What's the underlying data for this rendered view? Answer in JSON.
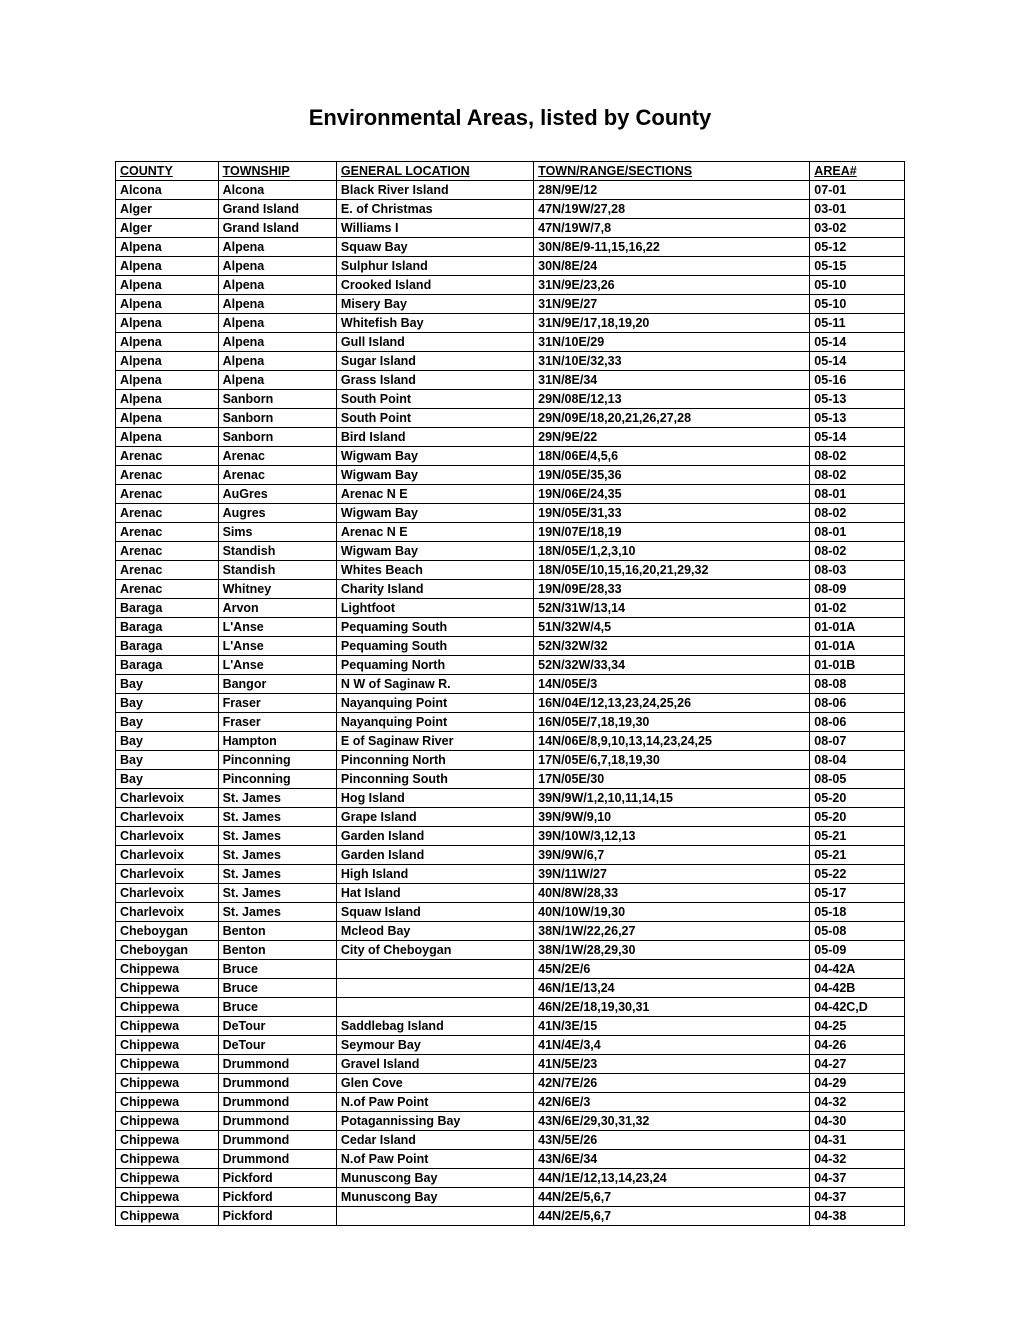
{
  "title": "Environmental Areas, listed by County",
  "columns": [
    "COUNTY",
    "TOWNSHIP",
    "GENERAL LOCATION",
    "TOWN/RANGE/SECTIONS",
    "AREA#"
  ],
  "rows": [
    [
      "Alcona",
      "Alcona",
      "Black River Island",
      "28N/9E/12",
      "07-01"
    ],
    [
      "Alger",
      "Grand Island",
      "E. of Christmas",
      "47N/19W/27,28",
      "03-01"
    ],
    [
      "Alger",
      "Grand Island",
      "Williams I",
      "47N/19W/7,8",
      "03-02"
    ],
    [
      "Alpena",
      "Alpena",
      "Squaw Bay",
      "30N/8E/9-11,15,16,22",
      "05-12"
    ],
    [
      "Alpena",
      "Alpena",
      "Sulphur Island",
      "30N/8E/24",
      "05-15"
    ],
    [
      "Alpena",
      "Alpena",
      "Crooked Island",
      "31N/9E/23,26",
      "05-10"
    ],
    [
      "Alpena",
      "Alpena",
      "Misery Bay",
      "31N/9E/27",
      "05-10"
    ],
    [
      "Alpena",
      "Alpena",
      "Whitefish Bay",
      "31N/9E/17,18,19,20",
      "05-11"
    ],
    [
      "Alpena",
      "Alpena",
      "Gull Island",
      "31N/10E/29",
      "05-14"
    ],
    [
      "Alpena",
      "Alpena",
      "Sugar Island",
      "31N/10E/32,33",
      "05-14"
    ],
    [
      "Alpena",
      "Alpena",
      "Grass Island",
      "31N/8E/34",
      "05-16"
    ],
    [
      "Alpena",
      "Sanborn",
      "South Point",
      "29N/08E/12,13",
      "05-13"
    ],
    [
      "Alpena",
      "Sanborn",
      "South Point",
      "29N/09E/18,20,21,26,27,28",
      "05-13"
    ],
    [
      "Alpena",
      "Sanborn",
      "Bird Island",
      "29N/9E/22",
      "05-14"
    ],
    [
      "Arenac",
      "Arenac",
      "Wigwam Bay",
      "18N/06E/4,5,6",
      "08-02"
    ],
    [
      "Arenac",
      "Arenac",
      "Wigwam Bay",
      "19N/05E/35,36",
      "08-02"
    ],
    [
      "Arenac",
      "AuGres",
      "Arenac N E",
      "19N/06E/24,35",
      "08-01"
    ],
    [
      "Arenac",
      "Augres",
      "Wigwam Bay",
      "19N/05E/31,33",
      "08-02"
    ],
    [
      "Arenac",
      "Sims",
      "Arenac N E",
      "19N/07E/18,19",
      "08-01"
    ],
    [
      "Arenac",
      "Standish",
      "Wigwam Bay",
      "18N/05E/1,2,3,10",
      "08-02"
    ],
    [
      "Arenac",
      "Standish",
      "Whites Beach",
      "18N/05E/10,15,16,20,21,29,32",
      "08-03"
    ],
    [
      "Arenac",
      "Whitney",
      "Charity Island",
      "19N/09E/28,33",
      "08-09"
    ],
    [
      "Baraga",
      "Arvon",
      "Lightfoot",
      "52N/31W/13,14",
      "01-02"
    ],
    [
      "Baraga",
      "L'Anse",
      "Pequaming South",
      "51N/32W/4,5",
      "01-01A"
    ],
    [
      "Baraga",
      "L'Anse",
      "Pequaming South",
      "52N/32W/32",
      "01-01A"
    ],
    [
      "Baraga",
      "L'Anse",
      "Pequaming North",
      "52N/32W/33,34",
      "01-01B"
    ],
    [
      "Bay",
      "Bangor",
      "N W  of Saginaw R.",
      "14N/05E/3",
      "08-08"
    ],
    [
      "Bay",
      "Fraser",
      "Nayanquing Point",
      "16N/04E/12,13,23,24,25,26",
      "08-06"
    ],
    [
      "Bay",
      "Fraser",
      "Nayanquing Point",
      "16N/05E/7,18,19,30",
      "08-06"
    ],
    [
      "Bay",
      "Hampton",
      "E of Saginaw River",
      "14N/06E/8,9,10,13,14,23,24,25",
      "08-07"
    ],
    [
      "Bay",
      "Pinconning",
      "Pinconning North",
      "17N/05E/6,7,18,19,30",
      "08-04"
    ],
    [
      "Bay",
      "Pinconning",
      "Pinconning South",
      "17N/05E/30",
      "08-05"
    ],
    [
      "Charlevoix",
      "St. James",
      "Hog Island",
      "39N/9W/1,2,10,11,14,15",
      "05-20"
    ],
    [
      "Charlevoix",
      "St. James",
      "Grape Island",
      "39N/9W/9,10",
      "05-20"
    ],
    [
      "Charlevoix",
      "St. James",
      "Garden Island",
      "39N/10W/3,12,13",
      "05-21"
    ],
    [
      "Charlevoix",
      "St. James",
      "Garden Island",
      "39N/9W/6,7",
      "05-21"
    ],
    [
      "Charlevoix",
      "St. James",
      "High Island",
      "39N/11W/27",
      "05-22"
    ],
    [
      "Charlevoix",
      "St. James",
      "Hat Island",
      "40N/8W/28,33",
      "05-17"
    ],
    [
      "Charlevoix",
      "St. James",
      "Squaw Island",
      "40N/10W/19,30",
      "05-18"
    ],
    [
      "Cheboygan",
      "Benton",
      "Mcleod Bay",
      "38N/1W/22,26,27",
      "05-08"
    ],
    [
      "Cheboygan",
      "Benton",
      "City of Cheboygan",
      "38N/1W/28,29,30",
      "05-09"
    ],
    [
      "Chippewa",
      "Bruce",
      "",
      "45N/2E/6",
      "04-42A"
    ],
    [
      "Chippewa",
      "Bruce",
      "",
      "46N/1E/13,24",
      "04-42B"
    ],
    [
      "Chippewa",
      "Bruce",
      "",
      "46N/2E/18,19,30,31",
      "04-42C,D"
    ],
    [
      "Chippewa",
      "DeTour",
      "Saddlebag Island",
      "41N/3E/15",
      "04-25"
    ],
    [
      "Chippewa",
      "DeTour",
      "Seymour Bay",
      "41N/4E/3,4",
      "04-26"
    ],
    [
      "Chippewa",
      "Drummond",
      "Gravel Island",
      "41N/5E/23",
      "04-27"
    ],
    [
      "Chippewa",
      "Drummond",
      "Glen Cove",
      "42N/7E/26",
      "04-29"
    ],
    [
      "Chippewa",
      "Drummond",
      "N.of Paw Point",
      "42N/6E/3",
      "04-32"
    ],
    [
      "Chippewa",
      "Drummond",
      "Potagannissing Bay",
      "43N/6E/29,30,31,32",
      "04-30"
    ],
    [
      "Chippewa",
      "Drummond",
      "Cedar Island",
      "43N/5E/26",
      "04-31"
    ],
    [
      "Chippewa",
      "Drummond",
      "N.of Paw Point",
      "43N/6E/34",
      "04-32"
    ],
    [
      "Chippewa",
      "Pickford",
      "Munuscong Bay",
      "44N/1E/12,13,14,23,24",
      "04-37"
    ],
    [
      "Chippewa",
      "Pickford",
      "Munuscong Bay",
      "44N/2E/5,6,7",
      "04-37"
    ],
    [
      "Chippewa",
      "Pickford",
      "",
      "44N/2E/5,6,7",
      "04-38"
    ]
  ]
}
